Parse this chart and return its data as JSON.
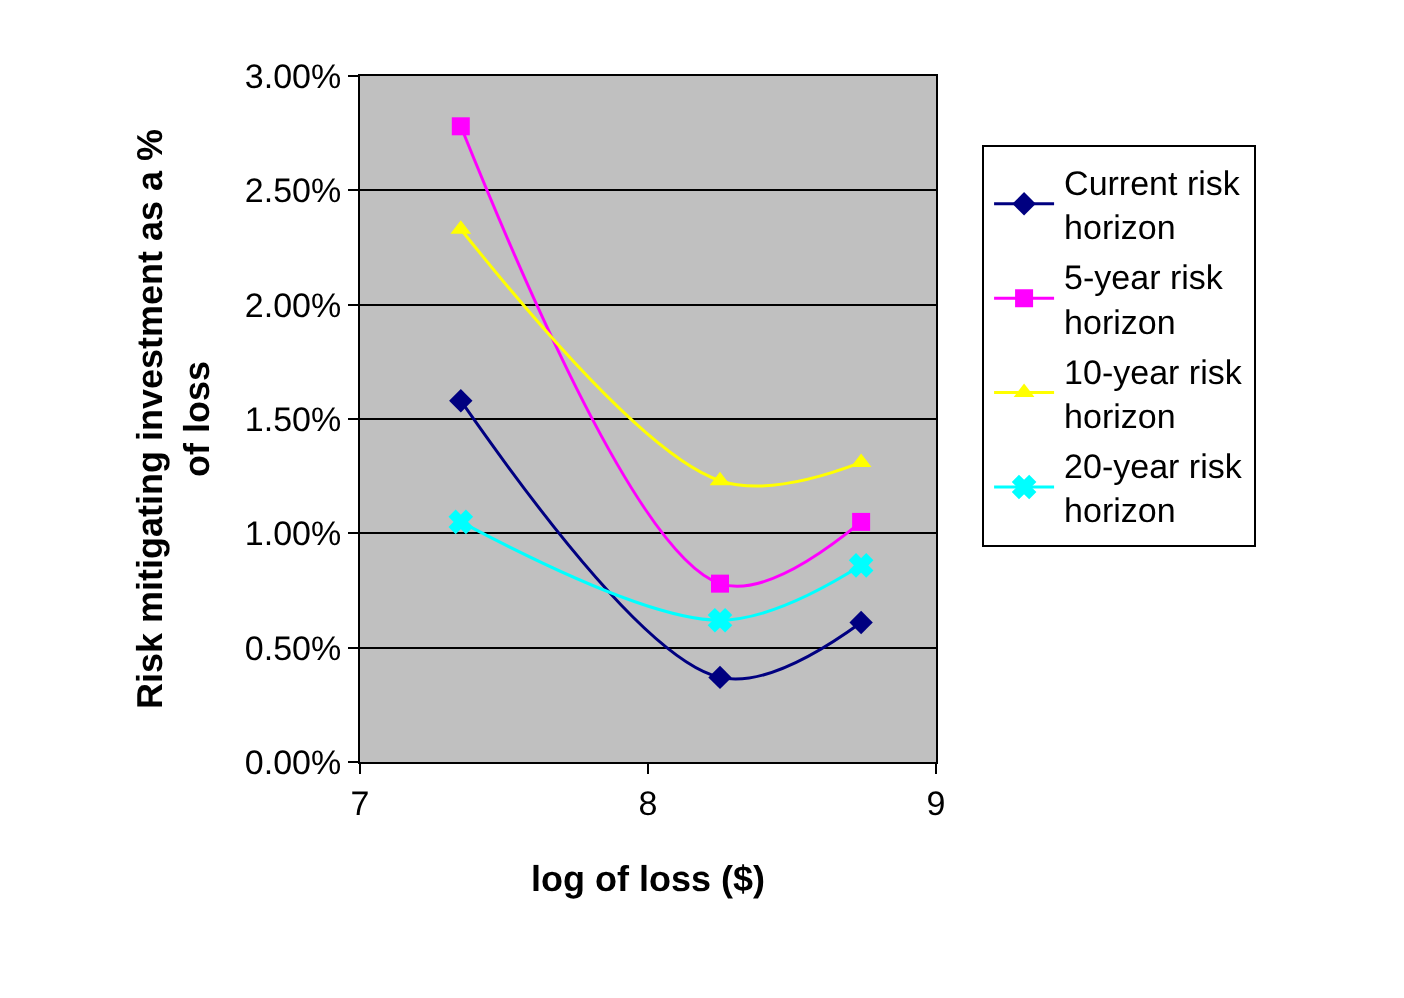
{
  "chart_data": {
    "type": "line",
    "xlabel": "log of loss ($)",
    "ylabel": "Risk mitigating investment as a % of loss",
    "x": [
      7.35,
      8.25,
      8.74
    ],
    "series": [
      {
        "name": "Current risk horizon",
        "color": "#000080",
        "marker": "diamond",
        "values": [
          1.58,
          0.37,
          0.61
        ]
      },
      {
        "name": "5-year risk horizon",
        "color": "#ff00ff",
        "marker": "square",
        "values": [
          2.78,
          0.78,
          1.05
        ]
      },
      {
        "name": "10-year risk horizon",
        "color": "#ffff00",
        "marker": "triangle",
        "values": [
          2.33,
          1.23,
          1.31
        ]
      },
      {
        "name": "20-year risk horizon",
        "color": "#00ffff",
        "marker": "cross",
        "values": [
          1.05,
          0.62,
          0.86
        ]
      }
    ],
    "xlim": [
      7,
      9
    ],
    "xticks": [
      7,
      8,
      9
    ],
    "ylim": [
      0,
      3
    ],
    "yticks": [
      {
        "value": 0,
        "label": "0.00%"
      },
      {
        "value": 0.5,
        "label": "0.50%"
      },
      {
        "value": 1,
        "label": "1.00%"
      },
      {
        "value": 1.5,
        "label": "1.50%"
      },
      {
        "value": 2,
        "label": "2.00%"
      },
      {
        "value": 2.5,
        "label": "2.50%"
      },
      {
        "value": 3,
        "label": "3.00%"
      }
    ],
    "grid": "y",
    "legend": "right"
  }
}
